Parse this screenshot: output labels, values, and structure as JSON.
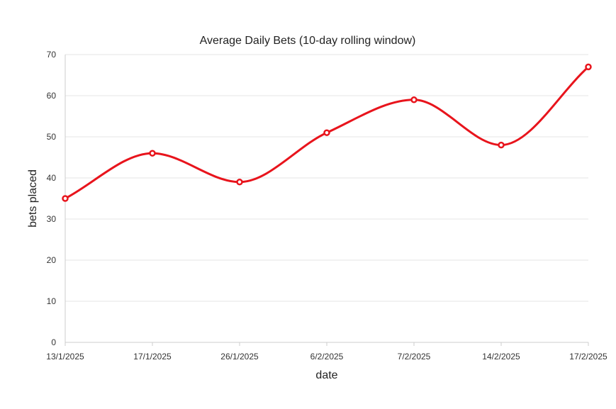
{
  "chart_data": {
    "type": "line",
    "title": "Average Daily Bets (10-day rolling window)",
    "xlabel": "date",
    "ylabel": "bets placed",
    "categories": [
      "13/1/2025",
      "17/1/2025",
      "26/1/2025",
      "6/2/2025",
      "7/2/2025",
      "14/2/2025",
      "17/2/2025"
    ],
    "series": [
      {
        "values": [
          35,
          46,
          39,
          51,
          59,
          48,
          67
        ],
        "color": "#e8141c"
      }
    ],
    "ylim": [
      0,
      70
    ],
    "yticks": [
      "0",
      "10",
      "20",
      "30",
      "40",
      "50",
      "60",
      "70"
    ],
    "grid": true,
    "smooth": true,
    "legend": "none"
  }
}
